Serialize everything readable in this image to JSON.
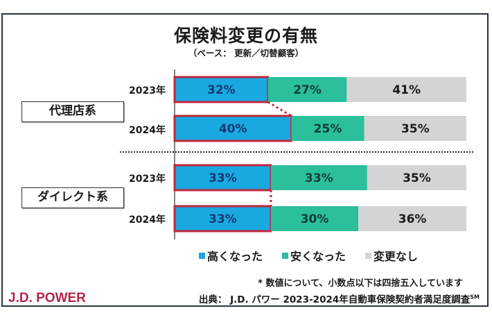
{
  "chart_data": {
    "type": "bar",
    "orientation": "horizontal",
    "stacked": true,
    "normalized": "100%",
    "title": "保険料変更の有無",
    "subtitle": "（ベース： 更新／切替顧客）",
    "groups": [
      {
        "name": "代理店系",
        "rows": [
          {
            "year": "2023年",
            "values": [
              32,
              27,
              41
            ],
            "labels": [
              "32%",
              "27%",
              "41%"
            ]
          },
          {
            "year": "2024年",
            "values": [
              40,
              25,
              35
            ],
            "labels": [
              "40%",
              "25%",
              "35%"
            ]
          }
        ]
      },
      {
        "name": "ダイレクト系",
        "rows": [
          {
            "year": "2023年",
            "values": [
              33,
              33,
              35
            ],
            "labels": [
              "33%",
              "33%",
              "35%"
            ]
          },
          {
            "year": "2024年",
            "values": [
              33,
              30,
              36
            ],
            "labels": [
              "33%",
              "30%",
              "36%"
            ]
          }
        ]
      }
    ],
    "series": [
      {
        "name": "高くなった",
        "color": "#1aa8e0"
      },
      {
        "name": "安くなった",
        "color": "#2bbf9c"
      },
      {
        "name": "変更なし",
        "color": "#d4d4d6"
      }
    ],
    "highlight_series": "高くなった",
    "highlight_color": "#c0283a",
    "xlim": [
      0,
      100
    ],
    "legend_position": "bottom",
    "grid": false
  },
  "note": "* 数値について、小数点以下は四捨五入しています",
  "source": "出典： J.D. パワー 2023-2024年自動車保険契約者満足度調査",
  "source_mark": "SM",
  "logo": "J.D. POWER"
}
